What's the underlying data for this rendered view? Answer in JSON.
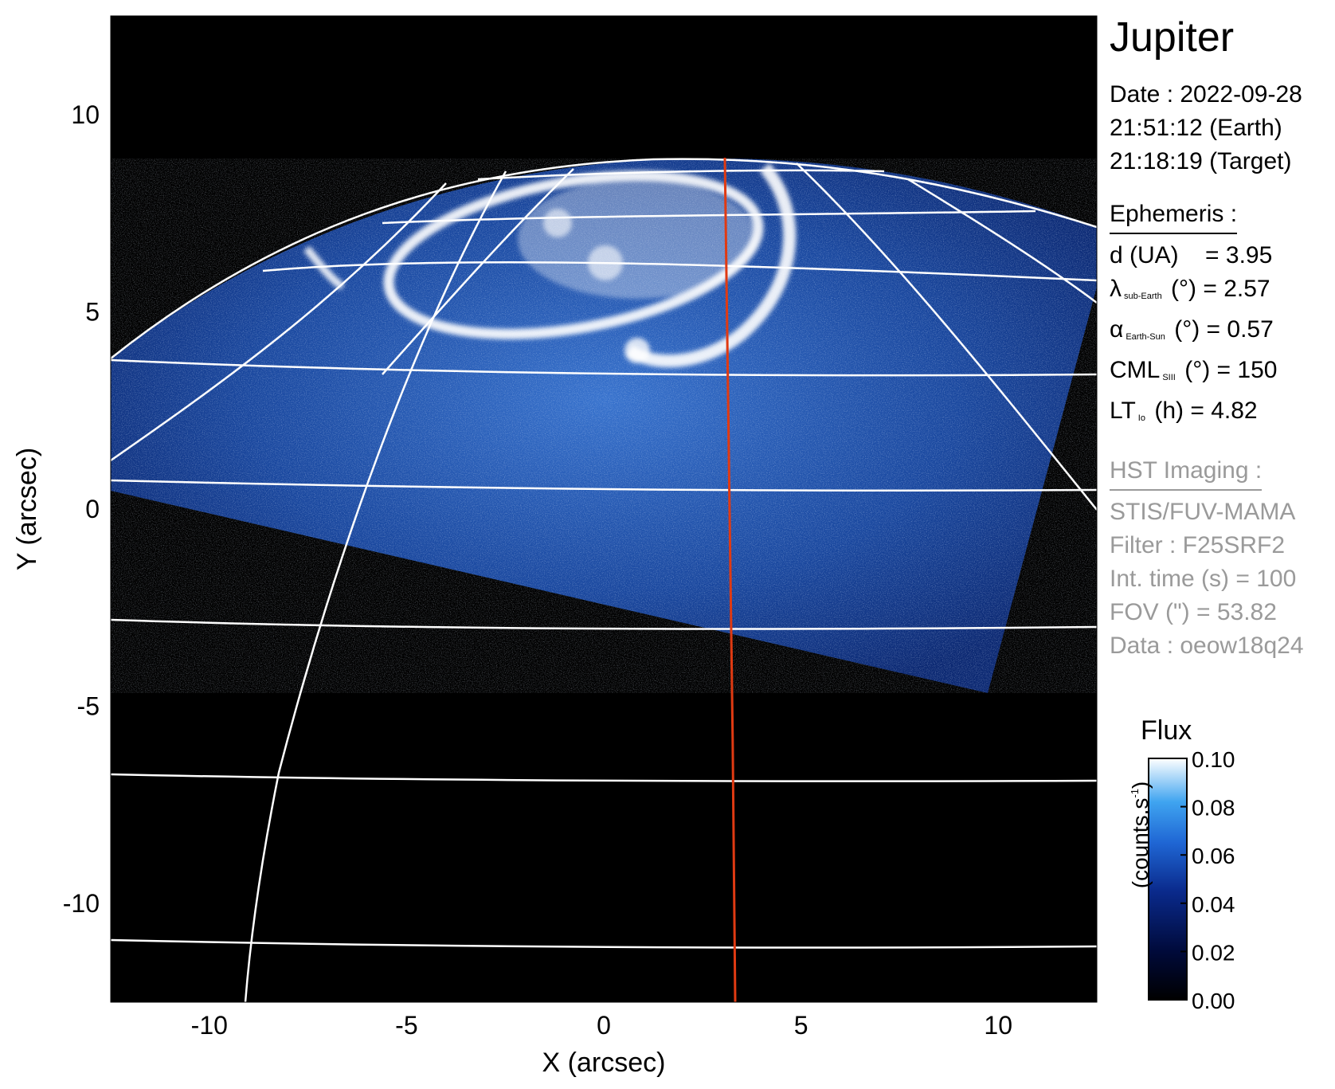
{
  "chart_data": {
    "type": "heatmap",
    "target_title": "Jupiter",
    "xlabel": "X (arcsec)",
    "ylabel": "Y (arcsec)",
    "xlim": [
      -12.5,
      12.5
    ],
    "ylim": [
      -12.5,
      12.5
    ],
    "x_ticks": [
      "-10",
      "-5",
      "0",
      "5",
      "10"
    ],
    "y_ticks": [
      "10",
      "5",
      "0",
      "-5",
      "-10"
    ],
    "x_tick_values": [
      -10,
      -5,
      0,
      5,
      10
    ],
    "y_tick_values": [
      10,
      5,
      0,
      -5,
      -10
    ],
    "colorbar": {
      "title": "Flux",
      "unit_label": "(counts.s",
      "unit_exponent": "-1",
      "unit_close": ")",
      "ticks": [
        "0.10",
        "0.08",
        "0.06",
        "0.04",
        "0.02",
        "0.00"
      ],
      "tick_values": [
        0.1,
        0.08,
        0.06,
        0.04,
        0.02,
        0.0
      ],
      "range": [
        0.0,
        0.1
      ]
    },
    "colors": {
      "background": "#000000",
      "emission_low": "#0a2a8c",
      "emission_mid": "#2f7fe0",
      "emission_high": "#ffffff",
      "grid": "#ffffff",
      "central_meridian": "#e03a12"
    }
  },
  "info": {
    "date_line": "Date : 2022-09-28",
    "earth_time": "21:51:12 (Earth)",
    "target_time": "21:18:19 (Target)"
  },
  "ephemeris": {
    "heading": "Ephemeris :",
    "d_label": "d (UA)",
    "d_value": "= 3.95",
    "lambda_symbol": "λ",
    "lambda_sub": "sub-Earth",
    "lambda_unit": "(°)",
    "lambda_value": "= 2.57",
    "alpha_symbol": "α",
    "alpha_sub": "Earth-Sun",
    "alpha_unit": "(°)",
    "alpha_value": "= 0.57",
    "cml_symbol": "CML",
    "cml_sub": "SIII",
    "cml_unit": "(°)",
    "cml_value": "= 150",
    "lt_symbol": "LT",
    "lt_sub": "Io",
    "lt_unit": "(h)",
    "lt_value": "= 4.82"
  },
  "hst": {
    "heading": "HST Imaging :",
    "instrument": "STIS/FUV-MAMA",
    "filter": "Filter : F25SRF2",
    "int_time": "Int. time (s) = 100",
    "fov": "FOV (\") = 53.82",
    "data_id": "Data : oeow18q24"
  }
}
